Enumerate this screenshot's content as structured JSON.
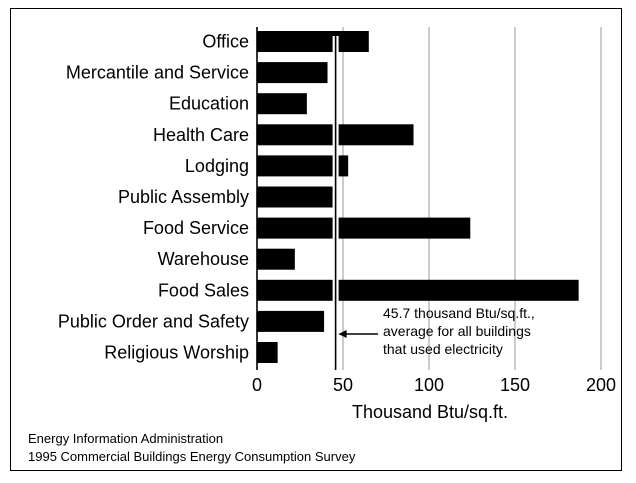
{
  "chart_data": {
    "type": "bar",
    "orientation": "horizontal",
    "categories": [
      "Office",
      "Mercantile and Service",
      "Education",
      "Health Care",
      "Lodging",
      "Public Assembly",
      "Food Service",
      "Warehouse",
      "Food Sales",
      "Public Order and Safety",
      "Religious Worship"
    ],
    "values": [
      65,
      41,
      29,
      91,
      53,
      44,
      124,
      22,
      187,
      39,
      12
    ],
    "xlabel": "Thousand Btu/sq.ft.",
    "xlim": [
      0,
      200
    ],
    "xticks": [
      0,
      50,
      100,
      150,
      200
    ],
    "grid": "vertical lines",
    "reference_line": {
      "value": 45.7,
      "annotation": [
        "45.7 thousand Btu/sq.ft.,",
        "average for all buildings",
        "that used electricity"
      ]
    },
    "bar_color": "#000000"
  },
  "source": {
    "line1": "Energy Information Administration",
    "line2": "1995 Commercial Buildings Energy Consumption Survey"
  }
}
